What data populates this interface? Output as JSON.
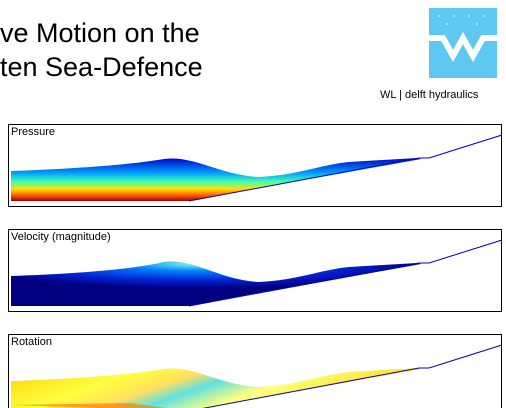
{
  "title": {
    "lines": [
      "ve Motion on the",
      "ten Sea-Defence"
    ]
  },
  "logo": {
    "caption": "WL | delft hydraulics"
  },
  "panels": [
    {
      "label": "Pressure"
    },
    {
      "label": "Velocity (magnitude)"
    },
    {
      "label": "Rotation"
    }
  ]
}
